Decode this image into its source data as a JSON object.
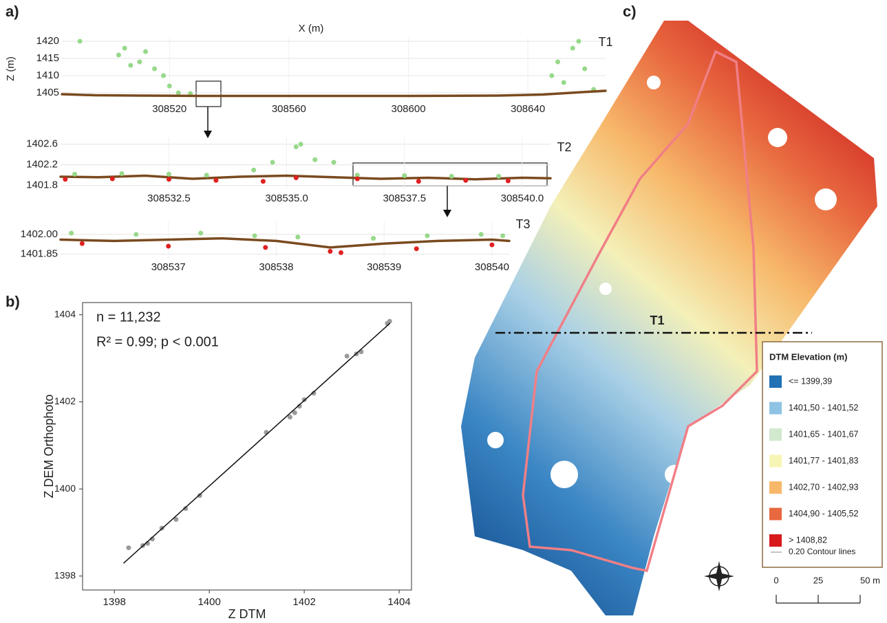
{
  "chart_data": [
    {
      "type": "scatter",
      "panel": "a)",
      "title": "T1",
      "x_label": "X (m)",
      "y_label": "Z (m)",
      "xlim": [
        308484,
        308666
      ],
      "ylim": [
        1403,
        1421
      ],
      "xticks": [
        308520,
        308560,
        308600,
        308640
      ],
      "yticks": [
        1405,
        1410,
        1415,
        1420
      ],
      "grid": true,
      "series": [
        {
          "color": "#97d98a",
          "style": "points",
          "x": [
            308490,
            308503,
            308505,
            308507,
            308510,
            308512,
            308515,
            308518,
            308520,
            308523,
            308527,
            308648,
            308650,
            308652,
            308655,
            308657,
            308659,
            308662
          ],
          "values": [
            1420,
            1416,
            1418,
            1413,
            1414,
            1417,
            1412,
            1410,
            1407,
            1405,
            1404.8,
            1410,
            1414,
            1408,
            1418,
            1420,
            1412,
            1406
          ]
        },
        {
          "color": "#7a4a1e",
          "style": "line",
          "x": [
            308484,
            308495,
            308510,
            308530,
            308560,
            308600,
            308630,
            308645,
            308660,
            308666
          ],
          "values": [
            1404.6,
            1404.3,
            1404.2,
            1404.1,
            1404.1,
            1404.1,
            1404.2,
            1404.5,
            1405.3,
            1405.6
          ]
        }
      ]
    },
    {
      "type": "scatter",
      "title": "T2",
      "xlim": [
        308530.2,
        308540.6
      ],
      "ylim": [
        1401.73,
        1402.73
      ],
      "xticks": [
        308532.5,
        {
          "value": 308535,
          "label": "308535.0"
        },
        308537.5,
        {
          "value": 308540,
          "label": "308540.0"
        }
      ],
      "yticks": [
        1401.8,
        1402.2,
        1402.6
      ],
      "grid": true,
      "series": [
        {
          "color": "#7a4a1e",
          "style": "line",
          "x": [
            308530.2,
            308531,
            308532,
            308533,
            308534,
            308535,
            308536,
            308537,
            308538,
            308539,
            308540,
            308540.6
          ],
          "values": [
            1401.97,
            1401.96,
            1401.99,
            1401.93,
            1401.97,
            1401.99,
            1401.96,
            1401.93,
            1401.95,
            1401.92,
            1401.95,
            1401.94
          ]
        },
        {
          "color": "#97d98a",
          "style": "points",
          "x": [
            308530.5,
            308531.5,
            308532.5,
            308533.3,
            308534.3,
            308534.7,
            308535.2,
            308535.3,
            308535.6,
            308536,
            308536.5,
            308537.5,
            308538.5,
            308539.5
          ],
          "values": [
            1402.02,
            1402.03,
            1402.02,
            1402,
            1402.1,
            1402.25,
            1402.55,
            1402.6,
            1402.3,
            1402.25,
            1402,
            1401.99,
            1401.98,
            1401.98
          ]
        },
        {
          "color": "#e02020",
          "style": "points",
          "x": [
            308530.3,
            308531.3,
            308532.5,
            308533.5,
            308534.5,
            308535.2,
            308536.5,
            308537.8,
            308538.8,
            308539.7
          ],
          "values": [
            1401.92,
            1401.93,
            1401.92,
            1401.9,
            1401.88,
            1401.95,
            1401.93,
            1401.88,
            1401.9,
            1401.89
          ]
        }
      ]
    },
    {
      "type": "scatter",
      "title": "T3",
      "xlim": [
        308536,
        308540.16
      ],
      "ylim": [
        1401.82,
        1402.1
      ],
      "xticks": [
        308537,
        308538,
        308539,
        308540
      ],
      "yticks": [
        1401.85,
        {
          "value": 1402,
          "label": "1402.00"
        }
      ],
      "grid": true,
      "series": [
        {
          "color": "#7a4a1e",
          "style": "line",
          "x": [
            308536,
            308536.5,
            308537,
            308537.5,
            308538,
            308538.5,
            308539,
            308539.5,
            308540,
            308540.16
          ],
          "values": [
            1401.96,
            1401.95,
            1401.96,
            1401.97,
            1401.95,
            1401.9,
            1401.93,
            1401.95,
            1401.96,
            1401.95
          ]
        },
        {
          "color": "#97d98a",
          "style": "points",
          "x": [
            308536.1,
            308536.7,
            308537.3,
            308537.8,
            308538.2,
            308538.9,
            308539.4,
            308539.9,
            308540.1
          ],
          "values": [
            1402.01,
            1402,
            1402.01,
            1401.99,
            1401.98,
            1401.97,
            1401.99,
            1402,
            1401.99
          ]
        },
        {
          "color": "#e02020",
          "style": "points",
          "x": [
            308536.2,
            308537,
            308537.9,
            308538.5,
            308538.6,
            308539.3,
            308540
          ],
          "values": [
            1401.93,
            1401.91,
            1401.9,
            1401.87,
            1401.86,
            1401.89,
            1401.92
          ]
        }
      ]
    },
    {
      "type": "scatter",
      "panel": "b)",
      "x_label": "Z DTM",
      "y_label": "Z DEM Orthophoto",
      "annotations": [
        "n = 11,232",
        "R² = 0.99;  p < 0.001"
      ],
      "xlim": [
        1397.33,
        1404.26
      ],
      "ylim": [
        1397.68,
        1404.28
      ],
      "xticks": [
        1398,
        1400,
        1402,
        1404
      ],
      "yticks": [
        1398,
        1400,
        1402,
        1404
      ],
      "grid": false,
      "series": [
        {
          "color": "#9a9a9a",
          "style": "points",
          "x": [
            1398.3,
            1398.6,
            1398.7,
            1398.8,
            1399,
            1399.3,
            1399.5,
            1399.8,
            1401.2,
            1401.7,
            1401.8,
            1401.9,
            1402,
            1402.2,
            1402.9,
            1403.1,
            1403.2,
            1403.8,
            1403.75
          ],
          "values": [
            1398.65,
            1398.7,
            1398.75,
            1398.85,
            1399.1,
            1399.3,
            1399.55,
            1399.85,
            1401.3,
            1401.65,
            1401.75,
            1401.9,
            1402.05,
            1402.2,
            1403.05,
            1403.1,
            1403.15,
            1403.85,
            1403.8
          ]
        },
        {
          "color": "#111111",
          "style": "line",
          "x": [
            1398.2,
            1403.8
          ],
          "values": [
            1398.3,
            1403.8
          ]
        }
      ]
    }
  ],
  "map": {
    "label": "c)",
    "transect": "T1",
    "legend": {
      "title": "DTM Elevation (m)",
      "items": [
        {
          "label": "<= 1399,39",
          "color": "#2171b5"
        },
        {
          "label": "1401,50 - 1401,52",
          "color": "#8fc3e4"
        },
        {
          "label": "1401,65 - 1401,67",
          "color": "#d2e8cf"
        },
        {
          "label": "1401,77 - 1401,83",
          "color": "#f7f5b5"
        },
        {
          "label": "1402,70 - 1402,93",
          "color": "#f7b86a"
        },
        {
          "label": "1404,90 - 1405,52",
          "color": "#e8683f"
        },
        {
          "label": "> 1408,82",
          "color": "#d7191c"
        }
      ],
      "contours": "0.20 Contour lines"
    },
    "scale": {
      "ticks": [
        0,
        25,
        {
          "value": 50,
          "label": "50 m"
        }
      ]
    }
  }
}
